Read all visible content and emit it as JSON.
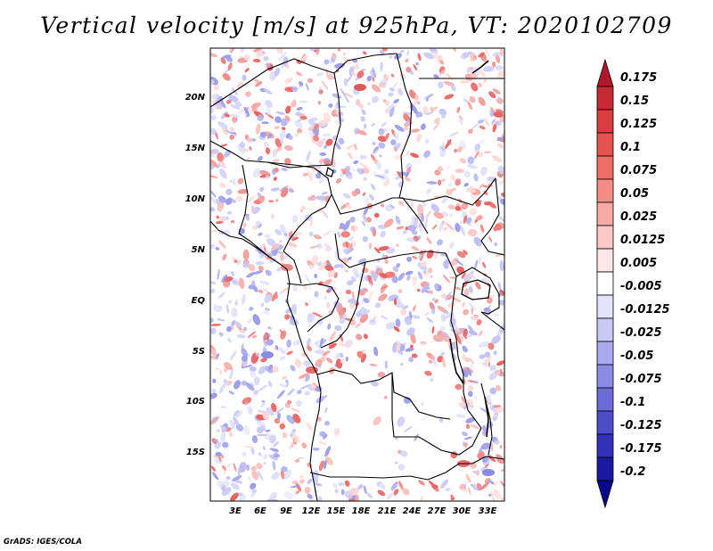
{
  "title": "Vertical velocity [m/s] at 925hPa, VT: 2020102709",
  "credit": "GrADS: IGES/COLA",
  "map": {
    "lon_range": [
      0,
      35
    ],
    "lat_range": [
      -20,
      25
    ],
    "x_ticks": [
      "3E",
      "6E",
      "9E",
      "12E",
      "15E",
      "18E",
      "21E",
      "24E",
      "27E",
      "30E",
      "33E"
    ],
    "y_ticks": [
      "20N",
      "15N",
      "10N",
      "5N",
      "EQ",
      "5S",
      "10S",
      "15S"
    ]
  },
  "colorbar": {
    "labels": [
      "0.175",
      "0.15",
      "0.125",
      "0.1",
      "0.075",
      "0.05",
      "0.025",
      "0.0125",
      "0.005",
      "-0.005",
      "-0.0125",
      "-0.025",
      "-0.05",
      "-0.075",
      "-0.1",
      "-0.125",
      "-0.175",
      "-0.2"
    ],
    "colors": [
      "#b2182b",
      "#c62a35",
      "#d93d3f",
      "#e5534e",
      "#ee6e65",
      "#f38c85",
      "#f8aaa5",
      "#fcc9c6",
      "#fee7e5",
      "#ffffff",
      "#e4e4fc",
      "#c9c9f6",
      "#aaaaee",
      "#8b8be4",
      "#6c6cd8",
      "#4d4dca",
      "#3232b8",
      "#1a1aa0",
      "#08088a"
    ]
  },
  "colors": {
    "positive": "#e05050",
    "negative": "#5a5ad8",
    "border": "#000000"
  }
}
